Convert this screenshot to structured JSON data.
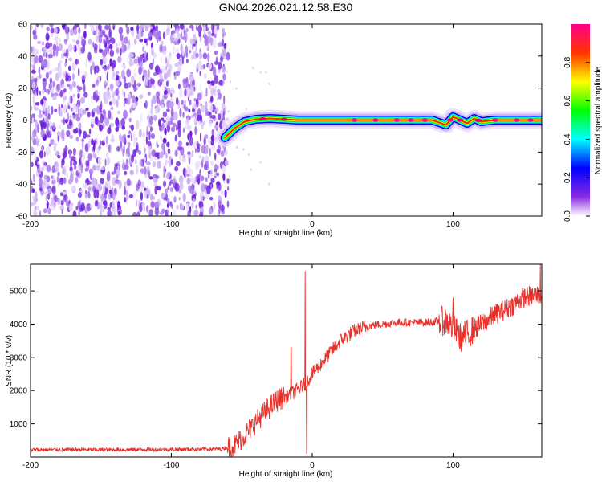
{
  "title": "GN04.2026.021.12.58.E30",
  "chart_data": [
    {
      "type": "heatmap",
      "name": "spectrogram",
      "xlabel": "Height of straight line (km)",
      "ylabel": "Frequency (Hz)",
      "xlim": [
        -200,
        163
      ],
      "ylim": [
        -60,
        60
      ],
      "xticks": [
        -200,
        -100,
        0,
        100
      ],
      "xtick_labels": [
        "-200",
        "-100",
        "0",
        "100"
      ],
      "yticks": [
        -60,
        -40,
        -20,
        0,
        20,
        40,
        60
      ],
      "ytick_labels": [
        "-60",
        "-40",
        "-20",
        "0",
        "20",
        "40",
        "60"
      ],
      "noise_region_x": [
        -200,
        -62
      ],
      "ridge_path": [
        [
          -62,
          -11
        ],
        [
          -55,
          -5
        ],
        [
          -48,
          -1
        ],
        [
          -40,
          0.5
        ],
        [
          -30,
          1
        ],
        [
          -20,
          0.5
        ],
        [
          -10,
          0
        ],
        [
          0,
          0
        ],
        [
          50,
          0
        ],
        [
          85,
          0
        ],
        [
          95,
          -3
        ],
        [
          100,
          2
        ],
        [
          105,
          0
        ],
        [
          110,
          -2
        ],
        [
          115,
          1
        ],
        [
          120,
          -1
        ],
        [
          130,
          0
        ],
        [
          163,
          0
        ]
      ],
      "colorbar": {
        "label": "Normalized spectral amplitude",
        "range": [
          0,
          1
        ],
        "ticks": [
          0.0,
          0.2,
          0.4,
          0.6,
          0.8
        ],
        "tick_labels": [
          "0.0",
          "0.2",
          "0.4",
          "0.6",
          "0.8"
        ]
      }
    },
    {
      "type": "line",
      "name": "snr",
      "xlabel": "Height of straight line (km)",
      "ylabel": "SNR (10 * v/v)",
      "xlim": [
        -200,
        163
      ],
      "ylim": [
        0,
        5800
      ],
      "xticks": [
        -200,
        -100,
        0,
        100
      ],
      "xtick_labels": [
        "-200",
        "-100",
        "0",
        "100"
      ],
      "yticks": [
        1000,
        2000,
        3000,
        4000,
        5000
      ],
      "ytick_labels": [
        "1000",
        "2000",
        "3000",
        "4000",
        "5000"
      ],
      "series": [
        {
          "name": "SNR",
          "color": "#e8302a",
          "envelope": [
            [
              -200,
              220
            ],
            [
              -150,
              220
            ],
            [
              -100,
              230
            ],
            [
              -65,
              240
            ],
            [
              -55,
              350
            ],
            [
              -45,
              800
            ],
            [
              -35,
              1300
            ],
            [
              -25,
              1700
            ],
            [
              -15,
              1900
            ],
            [
              -8,
              2100
            ],
            [
              -5,
              2200
            ],
            [
              0,
              2500
            ],
            [
              10,
              3000
            ],
            [
              20,
              3500
            ],
            [
              30,
              3800
            ],
            [
              40,
              3950
            ],
            [
              60,
              4050
            ],
            [
              80,
              4050
            ],
            [
              95,
              4100
            ],
            [
              100,
              3900
            ],
            [
              105,
              3600
            ],
            [
              110,
              3700
            ],
            [
              120,
              4000
            ],
            [
              130,
              4300
            ],
            [
              140,
              4500
            ],
            [
              150,
              4800
            ],
            [
              163,
              4900
            ]
          ],
          "spikes": [
            [
              -15,
              3300
            ],
            [
              -5,
              5600
            ],
            [
              -4,
              100
            ],
            [
              100,
              4800
            ],
            [
              162,
              5800
            ]
          ]
        }
      ]
    }
  ]
}
